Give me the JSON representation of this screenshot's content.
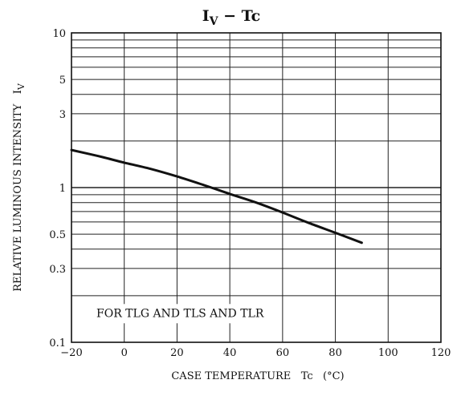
{
  "chart_data": {
    "type": "line",
    "title": "IV − Tc",
    "title_parts": {
      "base": "I",
      "sub": "V",
      "rest": " − Tc"
    },
    "xlabel": "CASE TEMPERATURE   Tc   (°C)",
    "ylabel": "RELATIVE LUMINOUS INTENSITY   IV",
    "xlim": [
      -20,
      120
    ],
    "ylim": [
      0.1,
      10
    ],
    "yscale": "log",
    "grid": true,
    "x_ticks": [
      -20,
      0,
      20,
      40,
      60,
      80,
      100,
      120
    ],
    "x_tick_labels": [
      "−20",
      "0",
      "20",
      "40",
      "60",
      "80",
      "100",
      "120"
    ],
    "y_gridlines": [
      0.2,
      0.3,
      0.4,
      0.5,
      0.6,
      0.7,
      0.8,
      0.9,
      1,
      2,
      3,
      4,
      5,
      6,
      7,
      8,
      9
    ],
    "y_ticks": [
      0.1,
      0.3,
      0.5,
      1,
      3,
      5,
      10
    ],
    "y_tick_labels": [
      "0.1",
      "0.3",
      "0.5",
      "1",
      "3",
      "5",
      "10"
    ],
    "annotation": "FOR TLG AND TLS AND TLR",
    "series": [
      {
        "x": [
          -20,
          -10,
          0,
          10,
          20,
          30,
          40,
          50,
          60,
          70,
          80,
          90
        ],
        "y": [
          1.75,
          1.6,
          1.45,
          1.32,
          1.18,
          1.04,
          0.91,
          0.8,
          0.69,
          0.59,
          0.51,
          0.44
        ]
      }
    ]
  }
}
